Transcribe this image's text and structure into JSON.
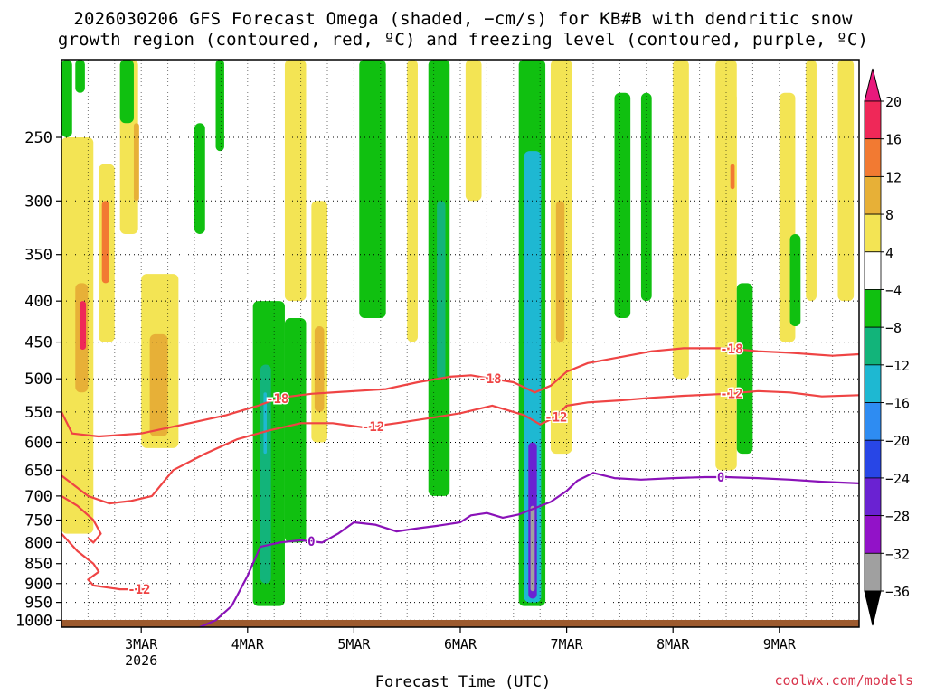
{
  "title": {
    "line1": "2026030206 GFS Forecast Omega (shaded, −cm/s) for KB#B with dendritic snow",
    "line2": "growth region (contoured, red, ºC) and freezing level (contoured, purple, ºC)"
  },
  "xlabel": "Forecast Time (UTC)",
  "credit": "coolwx.com/models",
  "chart_data": {
    "type": "heatmap",
    "y_axis": {
      "label": "",
      "ticks": [
        250,
        300,
        350,
        400,
        450,
        500,
        550,
        600,
        650,
        700,
        750,
        800,
        850,
        900,
        950,
        1000
      ],
      "range": [
        200,
        1020
      ],
      "log_scale": true,
      "inverted": true,
      "grid": true
    },
    "x_axis": {
      "range_days": [
        2.25,
        9.75
      ],
      "ticks": [
        {
          "day": 3,
          "label": "3MAR",
          "sub": "2026"
        },
        {
          "day": 4,
          "label": "4MAR",
          "sub": ""
        },
        {
          "day": 5,
          "label": "5MAR",
          "sub": ""
        },
        {
          "day": 6,
          "label": "6MAR",
          "sub": ""
        },
        {
          "day": 7,
          "label": "7MAR",
          "sub": ""
        },
        {
          "day": 8,
          "label": "8MAR",
          "sub": ""
        },
        {
          "day": 9,
          "label": "9MAR",
          "sub": ""
        }
      ]
    },
    "colorbar": {
      "tick_labels": [
        "20",
        "16",
        "12",
        "8",
        "4",
        "−4",
        "−8",
        "−12",
        "−16",
        "−20",
        "−24",
        "−28",
        "−32",
        "−36"
      ],
      "colors": [
        "#ef2858",
        "#f27a32",
        "#e7b037",
        "#f3e454",
        "#ffffff",
        "#10c010",
        "#12b47a",
        "#1eb8d2",
        "#2e8cf2",
        "#2846e6",
        "#6a22d2",
        "#9212c8",
        "#a0a0a0",
        "#000000"
      ],
      "top_arrow_color": "#e8197c",
      "bottom_arrow_color": "#000000"
    },
    "shaded_omega": [
      {
        "x0": 2.25,
        "x1": 2.55,
        "p0": 250,
        "p1": 780,
        "level": 8
      },
      {
        "x0": 2.38,
        "x1": 2.5,
        "p0": 380,
        "p1": 520,
        "level": 12
      },
      {
        "x0": 2.42,
        "x1": 2.48,
        "p0": 400,
        "p1": 460,
        "level": 20
      },
      {
        "x0": 2.6,
        "x1": 2.75,
        "p0": 270,
        "p1": 450,
        "level": 8
      },
      {
        "x0": 2.63,
        "x1": 2.7,
        "p0": 300,
        "p1": 380,
        "level": 16
      },
      {
        "x0": 2.8,
        "x1": 2.97,
        "p0": 200,
        "p1": 330,
        "level": 8
      },
      {
        "x0": 2.93,
        "x1": 2.98,
        "p0": 240,
        "p1": 300,
        "level": 12
      },
      {
        "x0": 2.25,
        "x1": 2.35,
        "p0": 200,
        "p1": 250,
        "level": -4
      },
      {
        "x0": 2.38,
        "x1": 2.47,
        "p0": 200,
        "p1": 220,
        "level": -4
      },
      {
        "x0": 2.8,
        "x1": 2.93,
        "p0": 200,
        "p1": 240,
        "level": -4
      },
      {
        "x0": 3.0,
        "x1": 3.35,
        "p0": 370,
        "p1": 610,
        "level": 8
      },
      {
        "x0": 3.08,
        "x1": 3.25,
        "p0": 440,
        "p1": 590,
        "level": 12
      },
      {
        "x0": 3.5,
        "x1": 3.6,
        "p0": 240,
        "p1": 330,
        "level": -4
      },
      {
        "x0": 3.7,
        "x1": 3.78,
        "p0": 200,
        "p1": 260,
        "level": -4
      },
      {
        "x0": 4.05,
        "x1": 4.35,
        "p0": 400,
        "p1": 960,
        "level": -4
      },
      {
        "x0": 4.12,
        "x1": 4.22,
        "p0": 480,
        "p1": 900,
        "level": -8
      },
      {
        "x0": 4.15,
        "x1": 4.18,
        "p0": 520,
        "p1": 620,
        "level": -12
      },
      {
        "x0": 4.35,
        "x1": 4.55,
        "p0": 420,
        "p1": 800,
        "level": -4
      },
      {
        "x0": 4.35,
        "x1": 4.55,
        "p0": 200,
        "p1": 400,
        "level": 4
      },
      {
        "x0": 4.6,
        "x1": 4.75,
        "p0": 300,
        "p1": 600,
        "level": 8
      },
      {
        "x0": 4.63,
        "x1": 4.72,
        "p0": 430,
        "p1": 550,
        "level": 12
      },
      {
        "x0": 5.05,
        "x1": 5.3,
        "p0": 200,
        "p1": 420,
        "level": -4
      },
      {
        "x0": 5.5,
        "x1": 5.6,
        "p0": 200,
        "p1": 450,
        "level": 4
      },
      {
        "x0": 5.7,
        "x1": 5.9,
        "p0": 200,
        "p1": 700,
        "level": -4
      },
      {
        "x0": 5.78,
        "x1": 5.86,
        "p0": 300,
        "p1": 500,
        "level": -8
      },
      {
        "x0": 6.05,
        "x1": 6.2,
        "p0": 200,
        "p1": 300,
        "level": 8
      },
      {
        "x0": 6.55,
        "x1": 6.8,
        "p0": 200,
        "p1": 960,
        "level": -4
      },
      {
        "x0": 6.6,
        "x1": 6.76,
        "p0": 260,
        "p1": 950,
        "level": -12
      },
      {
        "x0": 6.64,
        "x1": 6.72,
        "p0": 600,
        "p1": 940,
        "level": -24
      },
      {
        "x0": 6.66,
        "x1": 6.7,
        "p0": 720,
        "p1": 920,
        "level": -32
      },
      {
        "x0": 6.85,
        "x1": 7.05,
        "p0": 200,
        "p1": 620,
        "level": 8
      },
      {
        "x0": 6.9,
        "x1": 6.98,
        "p0": 300,
        "p1": 450,
        "level": 12
      },
      {
        "x0": 7.45,
        "x1": 7.6,
        "p0": 220,
        "p1": 420,
        "level": -4
      },
      {
        "x0": 7.7,
        "x1": 7.8,
        "p0": 220,
        "p1": 400,
        "level": -4
      },
      {
        "x0": 8.0,
        "x1": 8.15,
        "p0": 200,
        "p1": 500,
        "level": 4
      },
      {
        "x0": 8.4,
        "x1": 8.6,
        "p0": 200,
        "p1": 650,
        "level": 4
      },
      {
        "x0": 8.6,
        "x1": 8.75,
        "p0": 380,
        "p1": 620,
        "level": -4
      },
      {
        "x0": 8.52,
        "x1": 8.6,
        "p0": 220,
        "p1": 320,
        "level": 8
      },
      {
        "x0": 8.54,
        "x1": 8.58,
        "p0": 270,
        "p1": 290,
        "level": 16
      },
      {
        "x0": 9.0,
        "x1": 9.15,
        "p0": 220,
        "p1": 450,
        "level": 4
      },
      {
        "x0": 9.1,
        "x1": 9.2,
        "p0": 330,
        "p1": 430,
        "level": -4
      },
      {
        "x0": 9.25,
        "x1": 9.35,
        "p0": 200,
        "p1": 400,
        "level": 4
      },
      {
        "x0": 9.55,
        "x1": 9.7,
        "p0": 200,
        "p1": 400,
        "level": 4
      },
      {
        "x0": 9.6,
        "x1": 9.68,
        "p0": 230,
        "p1": 280,
        "level": 8
      }
    ],
    "dgz_contours": [
      {
        "label": "-18",
        "color": "#ef4444",
        "points": [
          [
            2.25,
            550
          ],
          [
            2.35,
            585
          ],
          [
            2.6,
            590
          ],
          [
            3.0,
            585
          ],
          [
            3.4,
            570
          ],
          [
            3.8,
            555
          ],
          [
            4.1,
            540
          ],
          [
            4.3,
            528
          ],
          [
            4.6,
            522
          ],
          [
            5.0,
            518
          ],
          [
            5.3,
            515
          ],
          [
            5.6,
            505
          ],
          [
            5.9,
            497
          ],
          [
            6.1,
            495
          ],
          [
            6.3,
            500
          ],
          [
            6.5,
            505
          ],
          [
            6.7,
            520
          ],
          [
            6.85,
            510
          ],
          [
            7.0,
            490
          ],
          [
            7.2,
            478
          ],
          [
            7.5,
            470
          ],
          [
            7.8,
            462
          ],
          [
            8.1,
            458
          ],
          [
            8.5,
            458
          ],
          [
            8.8,
            462
          ],
          [
            9.1,
            464
          ],
          [
            9.5,
            468
          ],
          [
            9.75,
            466
          ]
        ],
        "labels_at": [
          4.28,
          6.28,
          8.55
        ]
      },
      {
        "label": "-12",
        "color": "#ef4444",
        "points": [
          [
            2.25,
            660
          ],
          [
            2.5,
            700
          ],
          [
            2.7,
            715
          ],
          [
            2.9,
            710
          ],
          [
            3.1,
            700
          ],
          [
            3.3,
            650
          ],
          [
            3.6,
            620
          ],
          [
            3.9,
            595
          ],
          [
            4.2,
            580
          ],
          [
            4.5,
            568
          ],
          [
            4.8,
            568
          ],
          [
            5.1,
            575
          ],
          [
            5.4,
            568
          ],
          [
            5.7,
            560
          ],
          [
            6.0,
            552
          ],
          [
            6.3,
            540
          ],
          [
            6.6,
            555
          ],
          [
            6.75,
            570
          ],
          [
            6.9,
            558
          ],
          [
            7.0,
            540
          ],
          [
            7.2,
            535
          ],
          [
            7.5,
            532
          ],
          [
            7.8,
            528
          ],
          [
            8.1,
            525
          ],
          [
            8.5,
            522
          ],
          [
            8.8,
            518
          ],
          [
            9.1,
            520
          ],
          [
            9.4,
            526
          ],
          [
            9.75,
            524
          ]
        ],
        "labels_at": [
          5.18,
          6.9,
          8.55
        ]
      },
      {
        "label": "-12",
        "color": "#ef4444",
        "points": [
          [
            2.25,
            780
          ],
          [
            2.4,
            820
          ],
          [
            2.55,
            850
          ],
          [
            2.6,
            870
          ],
          [
            2.5,
            890
          ],
          [
            2.55,
            905
          ],
          [
            2.8,
            915
          ],
          [
            3.05,
            915
          ]
        ],
        "labels_at": [
          2.98
        ]
      },
      {
        "label": "",
        "color": "#ef4444",
        "points": [
          [
            2.25,
            700
          ],
          [
            2.4,
            720
          ],
          [
            2.55,
            750
          ],
          [
            2.62,
            780
          ],
          [
            2.55,
            800
          ],
          [
            2.5,
            790
          ]
        ],
        "labels_at": []
      }
    ],
    "freezing_level": {
      "label": "0",
      "color": "#8a12b8",
      "points": [
        [
          3.55,
          1020
        ],
        [
          3.7,
          1000
        ],
        [
          3.85,
          960
        ],
        [
          4.0,
          880
        ],
        [
          4.12,
          810
        ],
        [
          4.3,
          800
        ],
        [
          4.5,
          795
        ],
        [
          4.7,
          800
        ],
        [
          4.85,
          780
        ],
        [
          5.0,
          755
        ],
        [
          5.2,
          760
        ],
        [
          5.4,
          775
        ],
        [
          5.6,
          768
        ],
        [
          5.8,
          762
        ],
        [
          6.0,
          755
        ],
        [
          6.1,
          740
        ],
        [
          6.25,
          735
        ],
        [
          6.4,
          745
        ],
        [
          6.55,
          738
        ],
        [
          6.7,
          725
        ],
        [
          6.85,
          712
        ],
        [
          7.0,
          690
        ],
        [
          7.1,
          670
        ],
        [
          7.25,
          655
        ],
        [
          7.45,
          665
        ],
        [
          7.7,
          668
        ],
        [
          8.0,
          665
        ],
        [
          8.3,
          663
        ],
        [
          8.5,
          663
        ],
        [
          8.8,
          665
        ],
        [
          9.1,
          668
        ],
        [
          9.4,
          672
        ],
        [
          9.75,
          675
        ]
      ],
      "labels_at": [
        4.6,
        8.45
      ]
    }
  }
}
